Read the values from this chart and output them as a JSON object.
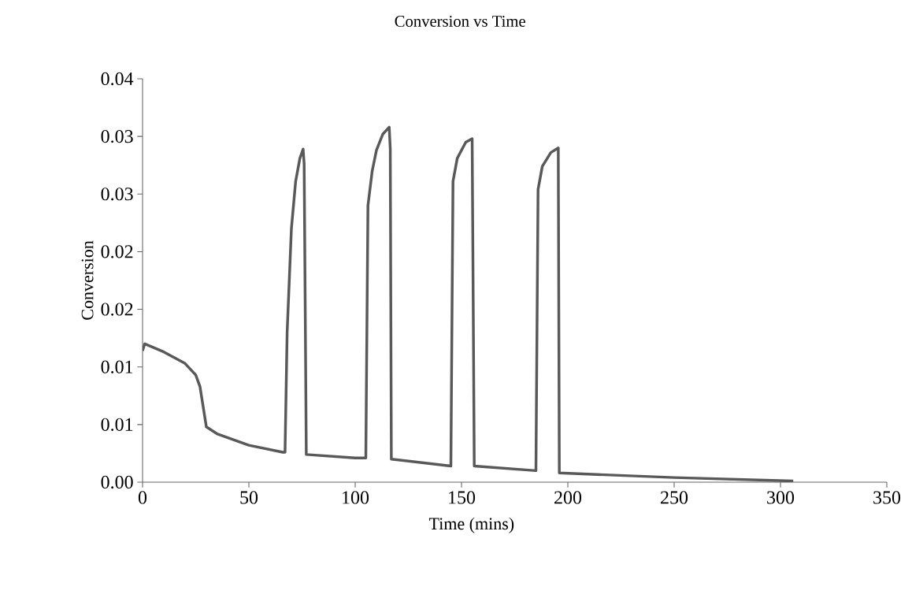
{
  "chart_data": {
    "type": "line",
    "title": "Conversion vs Time",
    "xlabel": "Time (mins)",
    "ylabel": "Conversion",
    "xlim": [
      0,
      350
    ],
    "xticks": [
      0,
      50,
      100,
      150,
      200,
      250,
      300,
      350
    ],
    "ylim": [
      0,
      0.035
    ],
    "yticks": [
      {
        "value": 0,
        "label": "0.00"
      },
      {
        "value": 0.005,
        "label": "0.01"
      },
      {
        "value": 0.01,
        "label": "0.01"
      },
      {
        "value": 0.015,
        "label": "0.02"
      },
      {
        "value": 0.02,
        "label": "0.02"
      },
      {
        "value": 0.025,
        "label": "0.03"
      },
      {
        "value": 0.03,
        "label": "0.03"
      },
      {
        "value": 0.035,
        "label": "0.04"
      }
    ],
    "grid": false,
    "marker": "none",
    "line_style": "solid",
    "series": [
      {
        "color": "#595959",
        "x": [
          0,
          1,
          10,
          20,
          25,
          27,
          30,
          35,
          50,
          66,
          67,
          68,
          70,
          72,
          74,
          75.5,
          76,
          77,
          100,
          105,
          106,
          108,
          110,
          113,
          116,
          116.5,
          117,
          145,
          146,
          148,
          152,
          155,
          156,
          185,
          186,
          188,
          192,
          195.5,
          196,
          250,
          306
        ],
        "values": [
          0.0114,
          0.012,
          0.0113,
          0.0103,
          0.0093,
          0.0083,
          0.0048,
          0.0042,
          0.0032,
          0.0026,
          0.0026,
          0.013,
          0.022,
          0.0261,
          0.0281,
          0.0289,
          0.0276,
          0.0024,
          0.0021,
          0.0021,
          0.024,
          0.027,
          0.0288,
          0.0302,
          0.0308,
          0.0289,
          0.002,
          0.0014,
          0.0261,
          0.0281,
          0.0295,
          0.0298,
          0.0014,
          0.001,
          0.0254,
          0.0274,
          0.0286,
          0.029,
          0.0008,
          0.0004,
          0.0001
        ]
      }
    ]
  }
}
